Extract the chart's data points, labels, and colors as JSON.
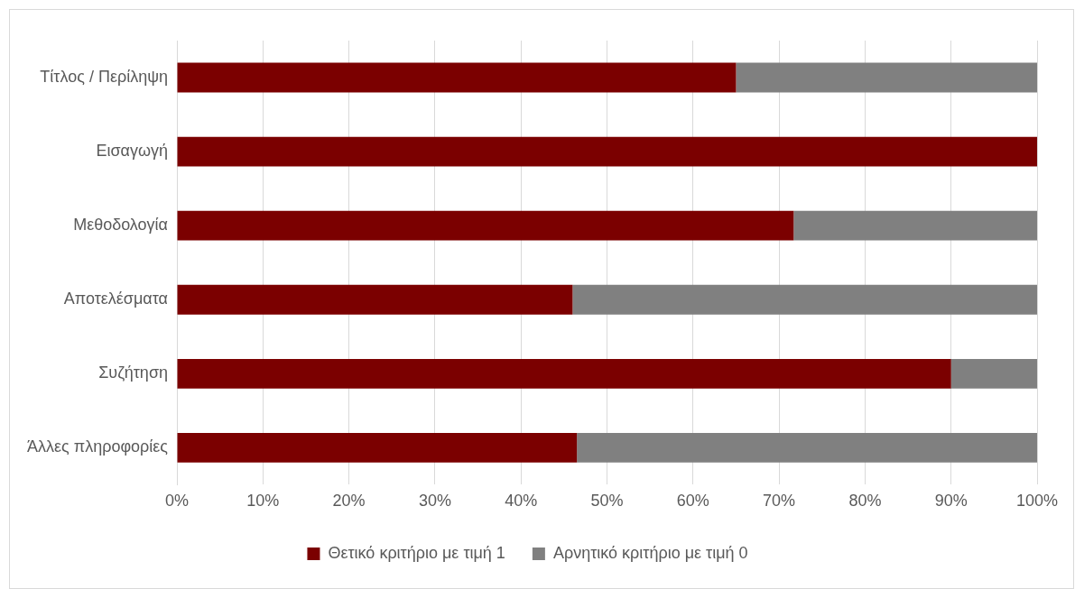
{
  "chart_data": {
    "type": "bar",
    "orientation": "horizontal",
    "stacked": true,
    "categories": [
      "Τίτλος / Περίληψη",
      "Εισαγωγή",
      "Μεθοδολογία",
      "Αποτελέσματα",
      "Συζήτηση",
      "Άλλες πληροφορίες"
    ],
    "series": [
      {
        "name": "Θετικό κριτήριο με τιμή 1",
        "color": "#7b0000",
        "values": [
          65,
          100,
          71.7,
          46,
          90,
          46.5
        ]
      },
      {
        "name": "Αρνητικό κριτήριο με τιμή 0",
        "color": "#808080",
        "values": [
          35,
          0,
          28.3,
          54,
          10,
          53.5
        ]
      }
    ],
    "xlim": [
      0,
      100
    ],
    "xticks": [
      {
        "value": 0,
        "label": "0%"
      },
      {
        "value": 10,
        "label": "10%"
      },
      {
        "value": 20,
        "label": "20%"
      },
      {
        "value": 30,
        "label": "30%"
      },
      {
        "value": 40,
        "label": "40%"
      },
      {
        "value": 50,
        "label": "50%"
      },
      {
        "value": 60,
        "label": "60%"
      },
      {
        "value": 70,
        "label": "70%"
      },
      {
        "value": 80,
        "label": "80%"
      },
      {
        "value": 90,
        "label": "90%"
      },
      {
        "value": 100,
        "label": "100%"
      }
    ],
    "grid": "x",
    "legend": "bottom"
  }
}
